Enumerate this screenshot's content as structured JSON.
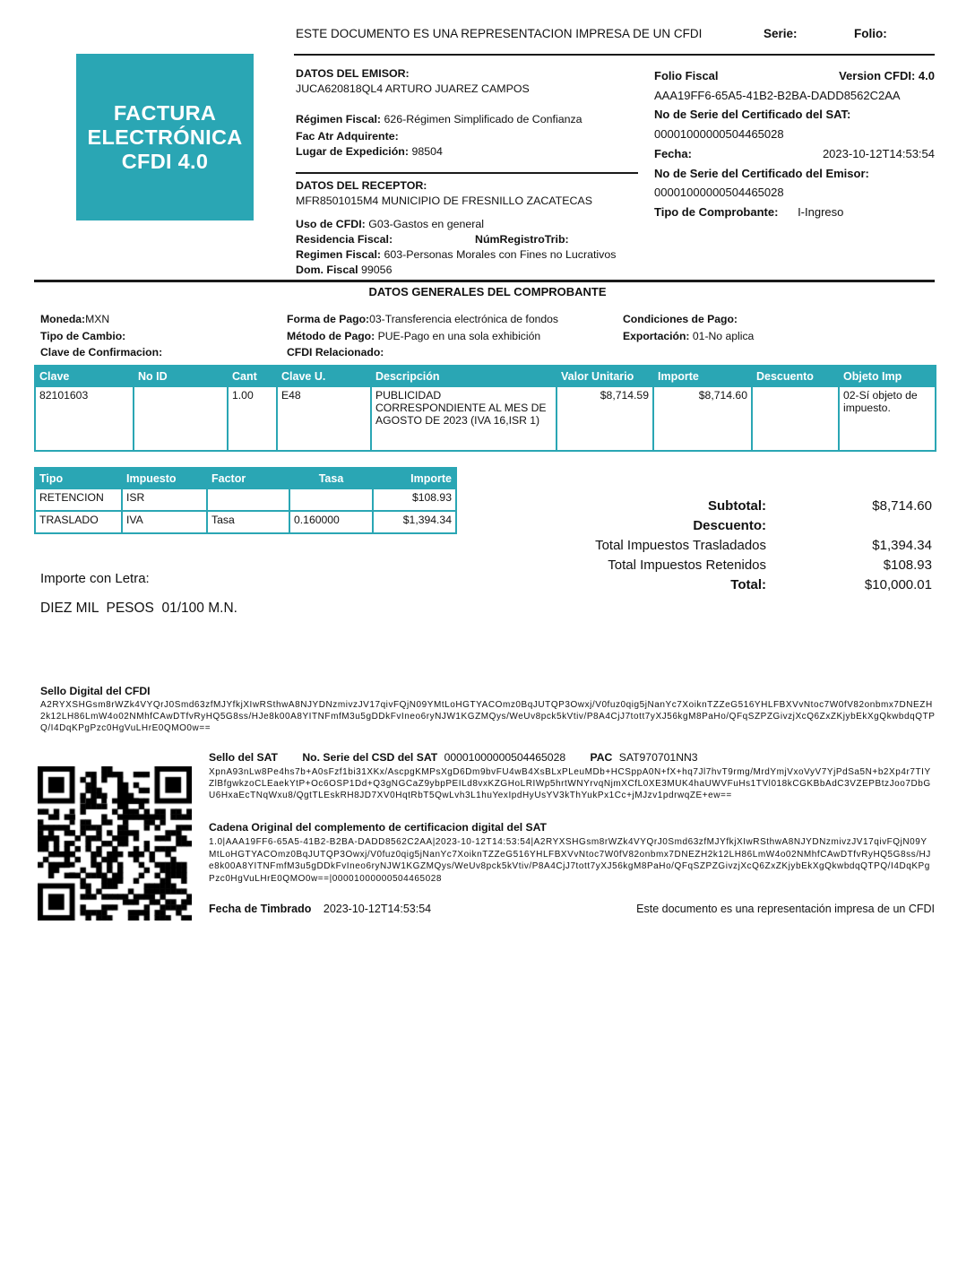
{
  "colors": {
    "teal": "#2AA6B4",
    "line": "#1a1a1a"
  },
  "header": {
    "top_note": "ESTE DOCUMENTO ES UNA REPRESENTACION IMPRESA DE UN CFDI",
    "serie_label": "Serie:",
    "folio_label": "Folio:"
  },
  "badge": {
    "line1": "FACTURA",
    "line2": "ELECTRÓNICA",
    "line3": "CFDI 4.0"
  },
  "emisor": {
    "title": "DATOS DEL EMISOR:",
    "name": "JUCA620818QL4 ARTURO JUAREZ CAMPOS",
    "regimen_label": "Régimen Fiscal:",
    "regimen_value": "626-Régimen Simplificado de Confianza",
    "fac_atr_label": "Fac Atr Adquirente:",
    "lugar_label": "Lugar de Expedición:",
    "lugar_value": "98504"
  },
  "receptor": {
    "title": "DATOS DEL RECEPTOR:",
    "name": "MFR8501015M4 MUNICIPIO DE FRESNILLO ZACATECAS",
    "uso_label": "Uso de CFDI:",
    "uso_value": "G03-Gastos en general",
    "residencia_label": "Residencia Fiscal:",
    "numregistro_label": "NúmRegistroTrib:",
    "regimen_label": "Regimen Fiscal:",
    "regimen_value": "603-Personas Morales con Fines no Lucrativos",
    "dom_label": "Dom. Fiscal",
    "dom_value": "99056"
  },
  "fiscal": {
    "folio_fiscal_label": "Folio Fiscal",
    "version_label": "Version CFDI: 4.0",
    "folio_fiscal_value": "AAA19FF6-65A5-41B2-B2BA-DADD8562C2AA",
    "no_serie_sat_label": "No de Serie del Certificado del SAT:",
    "no_serie_sat_value": "00001000000504465028",
    "fecha_label": "Fecha:",
    "fecha_value": "2023-10-12T14:53:54",
    "no_serie_emisor_label": "No de Serie del Certificado del Emisor:",
    "no_serie_emisor_value": "00001000000504465028",
    "tipo_label": "Tipo de Comprobante:",
    "tipo_value": "I-Ingreso"
  },
  "generales": {
    "title": "DATOS GENERALES DEL COMPROBANTE",
    "moneda_label": "Moneda:",
    "moneda_value": "MXN",
    "tipo_cambio_label": "Tipo de Cambio:",
    "clave_conf_label": "Clave de Confirmacion:",
    "forma_pago_label": "Forma de Pago:",
    "forma_pago_value": "03-Transferencia electrónica de fondos",
    "metodo_pago_label": "Método de Pago:",
    "metodo_pago_value": " PUE-Pago en una sola exhibición",
    "cfdi_rel_label": "CFDI Relacionado:",
    "condiciones_label": "Condiciones de Pago:",
    "exportacion_label": "Exportación:",
    "exportacion_value": "01-No aplica"
  },
  "items_table": {
    "headers": [
      "Clave",
      "No ID",
      "Cant",
      "Clave U.",
      "Descripción",
      "Valor Unitario",
      "Importe",
      "Descuento",
      "Objeto Imp"
    ],
    "rows": [
      [
        "82101603",
        "",
        "1.00",
        "E48",
        "PUBLICIDAD CORRESPONDIENTE AL MES DE AGOSTO DE 2023 (IVA 16,ISR 1)",
        "$8,714.59",
        "$8,714.60",
        "",
        "02-Sí objeto de impuesto."
      ]
    ]
  },
  "tax_table": {
    "headers": [
      "Tipo",
      "Impuesto",
      "Factor",
      "Tasa",
      "Importe"
    ],
    "rows": [
      [
        "RETENCION",
        "ISR",
        "",
        "",
        "$108.93"
      ],
      [
        "TRASLADO",
        "IVA",
        "Tasa",
        "0.160000",
        "$1,394.34"
      ]
    ]
  },
  "totals": {
    "rows": [
      {
        "label": "Subtotal:",
        "value": "$8,714.60"
      },
      {
        "label": "Descuento:",
        "value": ""
      },
      {
        "label": "Total Impuestos Trasladados",
        "value": "$1,394.34"
      },
      {
        "label": "Total Impuestos Retenidos",
        "value": "$108.93"
      },
      {
        "label": "Total:",
        "value": "$10,000.01"
      }
    ]
  },
  "importe_letra": {
    "label": "Importe con Letra:",
    "value": "DIEZ MIL  PESOS  01/100 M.N."
  },
  "sello_cfdi": {
    "title": "Sello Digital del CFDI",
    "text": "A2RYXSHGsm8rWZk4VYQrJ0Smd63zfMJYfkjXIwRSthwA8NJYDNzmivzJV17qivFQjN09YMtLoHGTYACOmz0BqJUTQP3Owxj/V0fuz0qig5jNanYc7XoiknTZZeG516YHLFBXVvNtoc7W0fV82onbmx7DNEZH2k12LH86LmW4o02NMhfCAwDTfvRyHQ5G8ss/HJe8k00A8YITNFmfM3u5gDDkFvIneo6ryNJW1KGZMQys/WeUv8pck5kVtiv/P8A4CjJ7tott7yXJ56kgM8PaHo/QFqSZPZGivzjXcQ6ZxZKjybEkXgQkwbdqQTPQ/I4DqKPgPzc0HgVuLHrE0QMO0w=="
  },
  "sat": {
    "sello_label": "Sello del SAT",
    "csd_label": "No. Serie del CSD del SAT",
    "csd_value": "00001000000504465028",
    "pac_label": "PAC",
    "pac_value": "SAT970701NN3",
    "sello_text": "XpnA93nLw8Pe4hs7b+A0sFzf1bi31XKx/AscpgKMPsXgD6Dm9bvFU4wB4XsBLxPLeuMDb+HCSppA0N+fX+hq7Jl7hvT9rmg/MrdYmjVxoVyV7YjPdSa5N+b2Xp4r7TIYZlBfgwkzoCLEaekYtP+Oc6OSP1Dd+Q3gNGCaZ9ybpPEILd8vxKZGHoLRIWp5hrtWNYrvqNjmXCfL0XE3MUK4haUWVFuHs1TVl018kCGKBbAdC3VZEPBtzJoo7DbGU6HxaEcTNqWxu8/QgtTLEskRH8JD7XV0HqtRbT5QwLvh3L1huYexIpdHyUsYV3kThYukPx1Cc+jMJzv1pdrwqZE+ew=="
  },
  "cadena": {
    "title": "Cadena Original del complemento de certificacion digital del SAT",
    "text": "1.0|AAA19FF6-65A5-41B2-B2BA-DADD8562C2AA|2023-10-12T14:53:54|A2RYXSHGsm8rWZk4VYQrJ0Smd63zfMJYfkjXIwRSthwA8NJYDNzmivzJV17qivFQjN09YMtLoHGTYACOmz0BqJUTQP3Owxj/V0fuz0qig5jNanYc7XoiknTZZeG516YHLFBXVvNtoc7W0fV82onbmx7DNEZH2k12LH86LmW4o02NMhfCAwDTfvRyHQ5G8ss/HJe8k00A8YITNFmfM3u5gDDkFvIneo6ryNJW1KGZMQys/WeUv8pck5kVtiv/P8A4CjJ7tott7yXJ56kgM8PaHo/QFqSZPZGivzjXcQ6ZxZKjybEkXgQkwbdqQTPQ/I4DqKPgPzc0HgVuLHrE0QMO0w==|00001000000504465028"
  },
  "timbrado": {
    "label": "Fecha de Timbrado",
    "value": "2023-10-12T14:53:54",
    "note": "Este documento es una representación impresa de un CFDI"
  }
}
